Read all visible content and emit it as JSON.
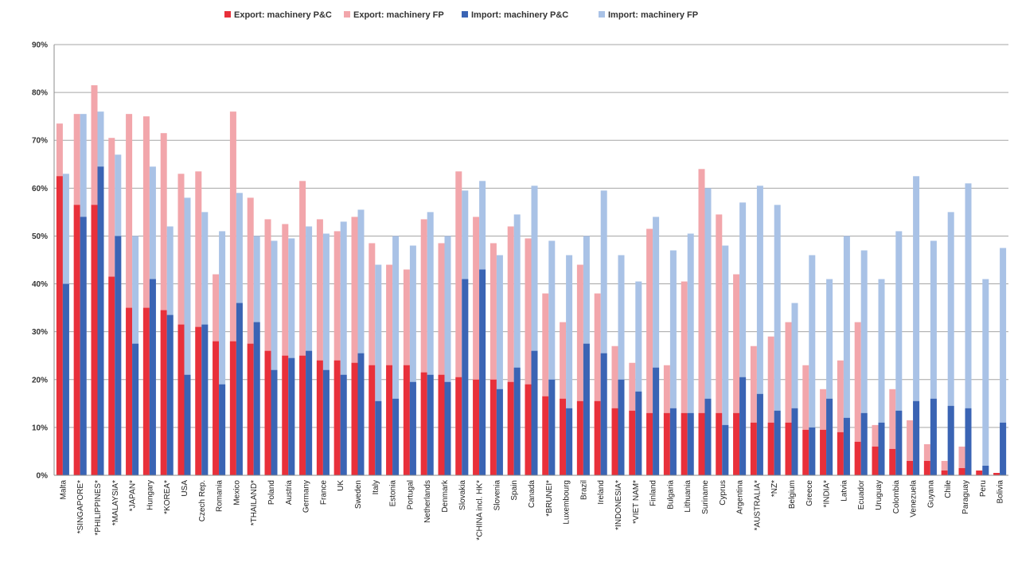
{
  "chart_data": {
    "type": "bar",
    "title": "",
    "xlabel": "",
    "ylabel": "",
    "ylim": [
      0,
      90
    ],
    "yticks": [
      "0%",
      "10%",
      "20%",
      "30%",
      "40%",
      "50%",
      "60%",
      "70%",
      "80%",
      "90%"
    ],
    "grid": true,
    "legend_position": "top",
    "categories": [
      "Malta",
      "*SINGAPORE*",
      "*PHILIPPINES*",
      "*MALAYSIA*",
      "*JAPAN*",
      "Hungary",
      "*KOREA*",
      "USA",
      "Czech Rep.",
      "Romania",
      "Mexico",
      "*THAILAND*",
      "Poland",
      "Austria",
      "Germany",
      "France",
      "UK",
      "Sweden",
      "Italy",
      "Estonia",
      "Portugal",
      "Netherlands",
      "Denmark",
      "Slovakia",
      "*CHINA incl. HK*",
      "Slovenia",
      "Spain",
      "Canada",
      "*BRUNEI*",
      "Luxembourg",
      "Brazil",
      "Ireland",
      "*INDONESIA*",
      "*VIET NAM*",
      "Finland",
      "Bulgaria",
      "Lithuania",
      "Suriname",
      "Cyprus",
      "Argentina",
      "*AUSTRALIA*",
      "*NZ*",
      "Belgium",
      "Greece",
      "*INDIA*",
      "Latvia",
      "Ecuador",
      "Uruguay",
      "Colombia",
      "Venezuela",
      "Guyana",
      "Chile",
      "Paraguay",
      "Peru",
      "Bolivia"
    ],
    "series": [
      {
        "name": "Export: machinery P&C",
        "color": "#e8303a",
        "role": "export-pc",
        "values": [
          62.5,
          56.5,
          56.5,
          41.5,
          35,
          35,
          34.5,
          31.5,
          31,
          28,
          28,
          27.5,
          26,
          25,
          25,
          24,
          24,
          23.5,
          23,
          23,
          23,
          21.5,
          21,
          20.5,
          20,
          20,
          19.5,
          19,
          16.5,
          16,
          15.5,
          15.5,
          14,
          13.5,
          13,
          13,
          13,
          13,
          13,
          13,
          11,
          11,
          11,
          9.5,
          9.5,
          9,
          7,
          6,
          5.5,
          3,
          3,
          1,
          1.5,
          1,
          0.5
        ]
      },
      {
        "name": "Export: machinery FP",
        "color": "#f2a6ab",
        "role": "export-fp",
        "values": [
          73.5,
          75.5,
          81.5,
          70.5,
          75.5,
          75,
          71.5,
          63,
          63.5,
          42,
          76,
          58,
          53.5,
          52.5,
          61.5,
          53.5,
          51,
          54,
          48.5,
          44,
          43,
          53.5,
          48.5,
          63.5,
          54,
          48.5,
          52,
          49.5,
          38,
          32,
          44,
          38,
          27,
          23.5,
          51.5,
          23,
          40.5,
          64,
          54.5,
          42,
          27,
          29,
          32,
          23,
          18,
          24,
          32,
          10.5,
          18,
          11.5,
          6.5,
          3,
          6,
          1,
          0.5
        ]
      },
      {
        "name": "Import:  machinery P&C",
        "color": "#3a64b4",
        "role": "import-pc",
        "values": [
          40,
          54,
          64.5,
          50,
          27.5,
          41,
          33.5,
          21,
          31.5,
          19,
          36,
          32,
          22,
          24.5,
          26,
          22,
          21,
          25.5,
          15.5,
          16,
          19.5,
          21,
          19.5,
          41,
          43,
          18,
          22.5,
          26,
          20,
          14,
          27.5,
          25.5,
          20,
          17.5,
          22.5,
          14,
          13,
          16,
          10.5,
          20.5,
          17,
          13.5,
          14,
          10,
          16,
          12,
          13,
          11,
          13.5,
          15.5,
          16,
          14.5,
          14,
          2,
          11
        ]
      },
      {
        "name": "Import: machinery FP",
        "color": "#a9c2e6",
        "role": "import-fp",
        "values": [
          63,
          75.5,
          76,
          67,
          50,
          64.5,
          52,
          58,
          55,
          51,
          59,
          50,
          49,
          49.5,
          52,
          50.5,
          53,
          55.5,
          44,
          50,
          48,
          55,
          50,
          59.5,
          61.5,
          46,
          54.5,
          60.5,
          49,
          46,
          50,
          59.5,
          46,
          40.5,
          54,
          47,
          50.5,
          60,
          48,
          57,
          60.5,
          56.5,
          36,
          46,
          41,
          50,
          47,
          41,
          51,
          62.5,
          49,
          55,
          61,
          41,
          47.5
        ]
      }
    ]
  }
}
